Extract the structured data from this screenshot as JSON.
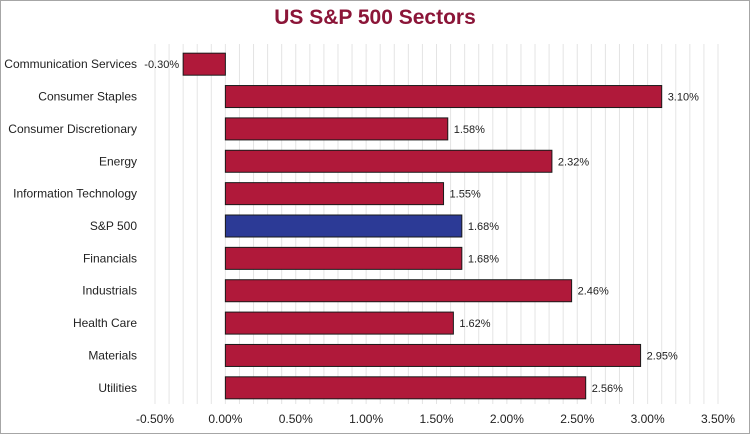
{
  "colors": {
    "title": "#8b1538",
    "bar": "#b0193a",
    "highlight_bar": "#2c3a96",
    "bar_stroke": "#1a1a1a",
    "grid": "#e4e4e4"
  },
  "chart_data": {
    "type": "bar",
    "orientation": "horizontal",
    "title": "US S&P 500 Sectors",
    "xlabel": "",
    "ylabel": "",
    "categories": [
      "Communication Services",
      "Consumer Staples",
      "Consumer Discretionary",
      "Energy",
      "Information Technology",
      "S&P 500",
      "Financials",
      "Industrials",
      "Health Care",
      "Materials",
      "Utilities"
    ],
    "values": [
      -0.3,
      3.1,
      1.58,
      2.32,
      1.55,
      1.68,
      1.68,
      2.46,
      1.62,
      2.95,
      2.56
    ],
    "value_labels": [
      "-0.30%",
      "3.10%",
      "1.58%",
      "2.32%",
      "1.55%",
      "1.68%",
      "1.68%",
      "2.46%",
      "1.62%",
      "2.95%",
      "2.56%"
    ],
    "highlight_category": "S&P 500",
    "xlim": [
      -0.5,
      3.5
    ],
    "x_ticks": [
      -0.5,
      0,
      0.5,
      1.0,
      1.5,
      2.0,
      2.5,
      3.0,
      3.5
    ],
    "x_tick_labels": [
      "-0.50%",
      "0.00%",
      "0.50%",
      "1.00%",
      "1.50%",
      "2.00%",
      "2.50%",
      "3.00%",
      "3.50%"
    ],
    "minor_grid_step": 0.1,
    "grid": true,
    "legend": false
  }
}
